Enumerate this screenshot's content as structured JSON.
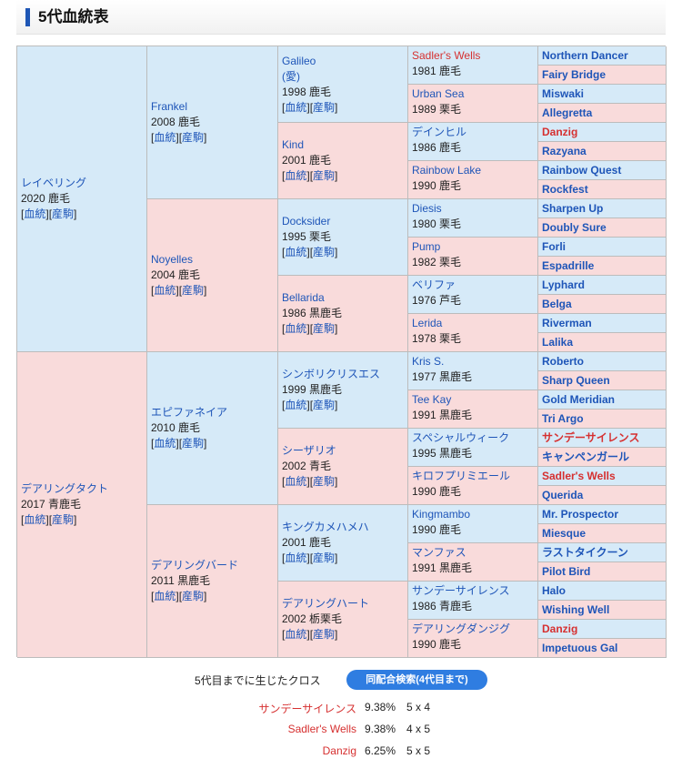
{
  "header": {
    "title": "5代血統表"
  },
  "gen1": [
    {
      "name": "レイベリング",
      "info": "2020 鹿毛",
      "link1": "血統",
      "link2": "産駒"
    },
    {
      "name": "デアリングタクト",
      "info": "2017 青鹿毛",
      "link1": "血統",
      "link2": "産駒"
    }
  ],
  "gen2": [
    {
      "name": "Frankel",
      "info": "2008 鹿毛",
      "link1": "血統",
      "link2": "産駒"
    },
    {
      "name": "Noyelles",
      "info": "2004 鹿毛",
      "link1": "血統",
      "link2": "産駒"
    },
    {
      "name": "エピファネイア",
      "info": "2010 鹿毛",
      "link1": "血統",
      "link2": "産駒"
    },
    {
      "name": "デアリングバード",
      "info": "2011 黒鹿毛",
      "link1": "血統",
      "link2": "産駒"
    }
  ],
  "gen3": [
    {
      "name": "Galileo",
      "name2": "(愛)",
      "info": "1998 鹿毛",
      "link1": "血統",
      "link2": "産駒"
    },
    {
      "name": "Kind",
      "info": "2001 鹿毛",
      "link1": "血統",
      "link2": "産駒"
    },
    {
      "name": "Docksider",
      "info": "1995 栗毛",
      "link1": "血統",
      "link2": "産駒"
    },
    {
      "name": "Bellarida",
      "info": "1986 黒鹿毛",
      "link1": "血統",
      "link2": "産駒"
    },
    {
      "name": "シンボリクリスエス",
      "info": "1999 黒鹿毛",
      "link1": "血統",
      "link2": "産駒"
    },
    {
      "name": "シーザリオ",
      "info": "2002 青毛",
      "link1": "血統",
      "link2": "産駒"
    },
    {
      "name": "キングカメハメハ",
      "info": "2001 鹿毛",
      "link1": "血統",
      "link2": "産駒"
    },
    {
      "name": "デアリングハート",
      "info": "2002 栃栗毛",
      "link1": "血統",
      "link2": "産駒"
    }
  ],
  "gen4": [
    {
      "name": "Sadler's Wells",
      "info": "1981 鹿毛"
    },
    {
      "name": "Urban Sea",
      "info": "1989 栗毛"
    },
    {
      "name": "デインヒル",
      "info": "1986 鹿毛"
    },
    {
      "name": "Rainbow Lake",
      "info": "1990 鹿毛"
    },
    {
      "name": "Diesis",
      "info": "1980 栗毛"
    },
    {
      "name": "Pump",
      "info": "1982 栗毛"
    },
    {
      "name": "ベリファ",
      "info": "1976 芦毛"
    },
    {
      "name": "Lerida",
      "info": "1978 栗毛"
    },
    {
      "name": "Kris S.",
      "info": "1977 黒鹿毛"
    },
    {
      "name": "Tee Kay",
      "info": "1991 黒鹿毛"
    },
    {
      "name": "スペシャルウィーク",
      "info": "1995 黒鹿毛"
    },
    {
      "name": "キロフプリミエール",
      "info": "1990 鹿毛"
    },
    {
      "name": "Kingmambo",
      "info": "1990 鹿毛"
    },
    {
      "name": "マンファス",
      "info": "1991 黒鹿毛"
    },
    {
      "name": "サンデーサイレンス",
      "info": "1986 青鹿毛"
    },
    {
      "name": "デアリングダンジグ",
      "info": "1990 鹿毛"
    }
  ],
  "gen5": [
    "Northern Dancer",
    "Fairy Bridge",
    "Miswaki",
    "Allegretta",
    "Danzig",
    "Razyana",
    "Rainbow Quest",
    "Rockfest",
    "Sharpen Up",
    "Doubly Sure",
    "Forli",
    "Espadrille",
    "Lyphard",
    "Belga",
    "Riverman",
    "Lalika",
    "Roberto",
    "Sharp Queen",
    "Gold Meridian",
    "Tri Argo",
    "サンデーサイレンス",
    "キャンペンガール",
    "Sadler's Wells",
    "Querida",
    "Mr. Prospector",
    "Miesque",
    "ラストタイクーン",
    "Pilot Bird",
    "Halo",
    "Wishing Well",
    "Danzig",
    "Impetuous Gal"
  ],
  "cross": {
    "label": "5代目までに生じたクロス",
    "button": "同配合検索(4代目まで)",
    "items": [
      {
        "name": "サンデーサイレンス",
        "pct": "9.38%",
        "gen": "5 x 4"
      },
      {
        "name": "Sadler's Wells",
        "pct": "9.38%",
        "gen": "4 x 5"
      },
      {
        "name": "Danzig",
        "pct": "6.25%",
        "gen": "5 x 5"
      }
    ]
  },
  "colors": {
    "sire_bg": "#d6eaf8",
    "dam_bg": "#f9dbdb",
    "link": "#1e55b8",
    "cross_red": "#d63030",
    "button": "#2f7de1"
  }
}
